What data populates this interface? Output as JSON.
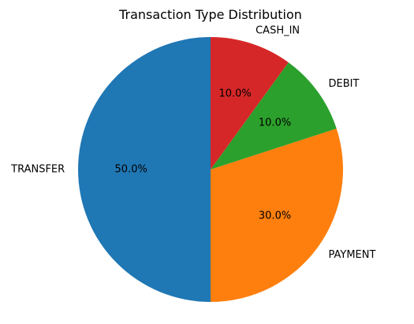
{
  "chart_data": {
    "type": "pie",
    "title": "Transaction Type Distribution",
    "categories": [
      "TRANSFER",
      "PAYMENT",
      "DEBIT",
      "CASH_IN"
    ],
    "values": [
      50.0,
      30.0,
      10.0,
      10.0
    ],
    "percent_labels": [
      "50.0%",
      "30.0%",
      "10.0%",
      "10.0%"
    ],
    "colors": [
      "#1f77b4",
      "#ff7f0e",
      "#2ca02c",
      "#d62728"
    ],
    "start_angle_deg": 90,
    "direction": "counterclockwise",
    "legend": "none"
  }
}
